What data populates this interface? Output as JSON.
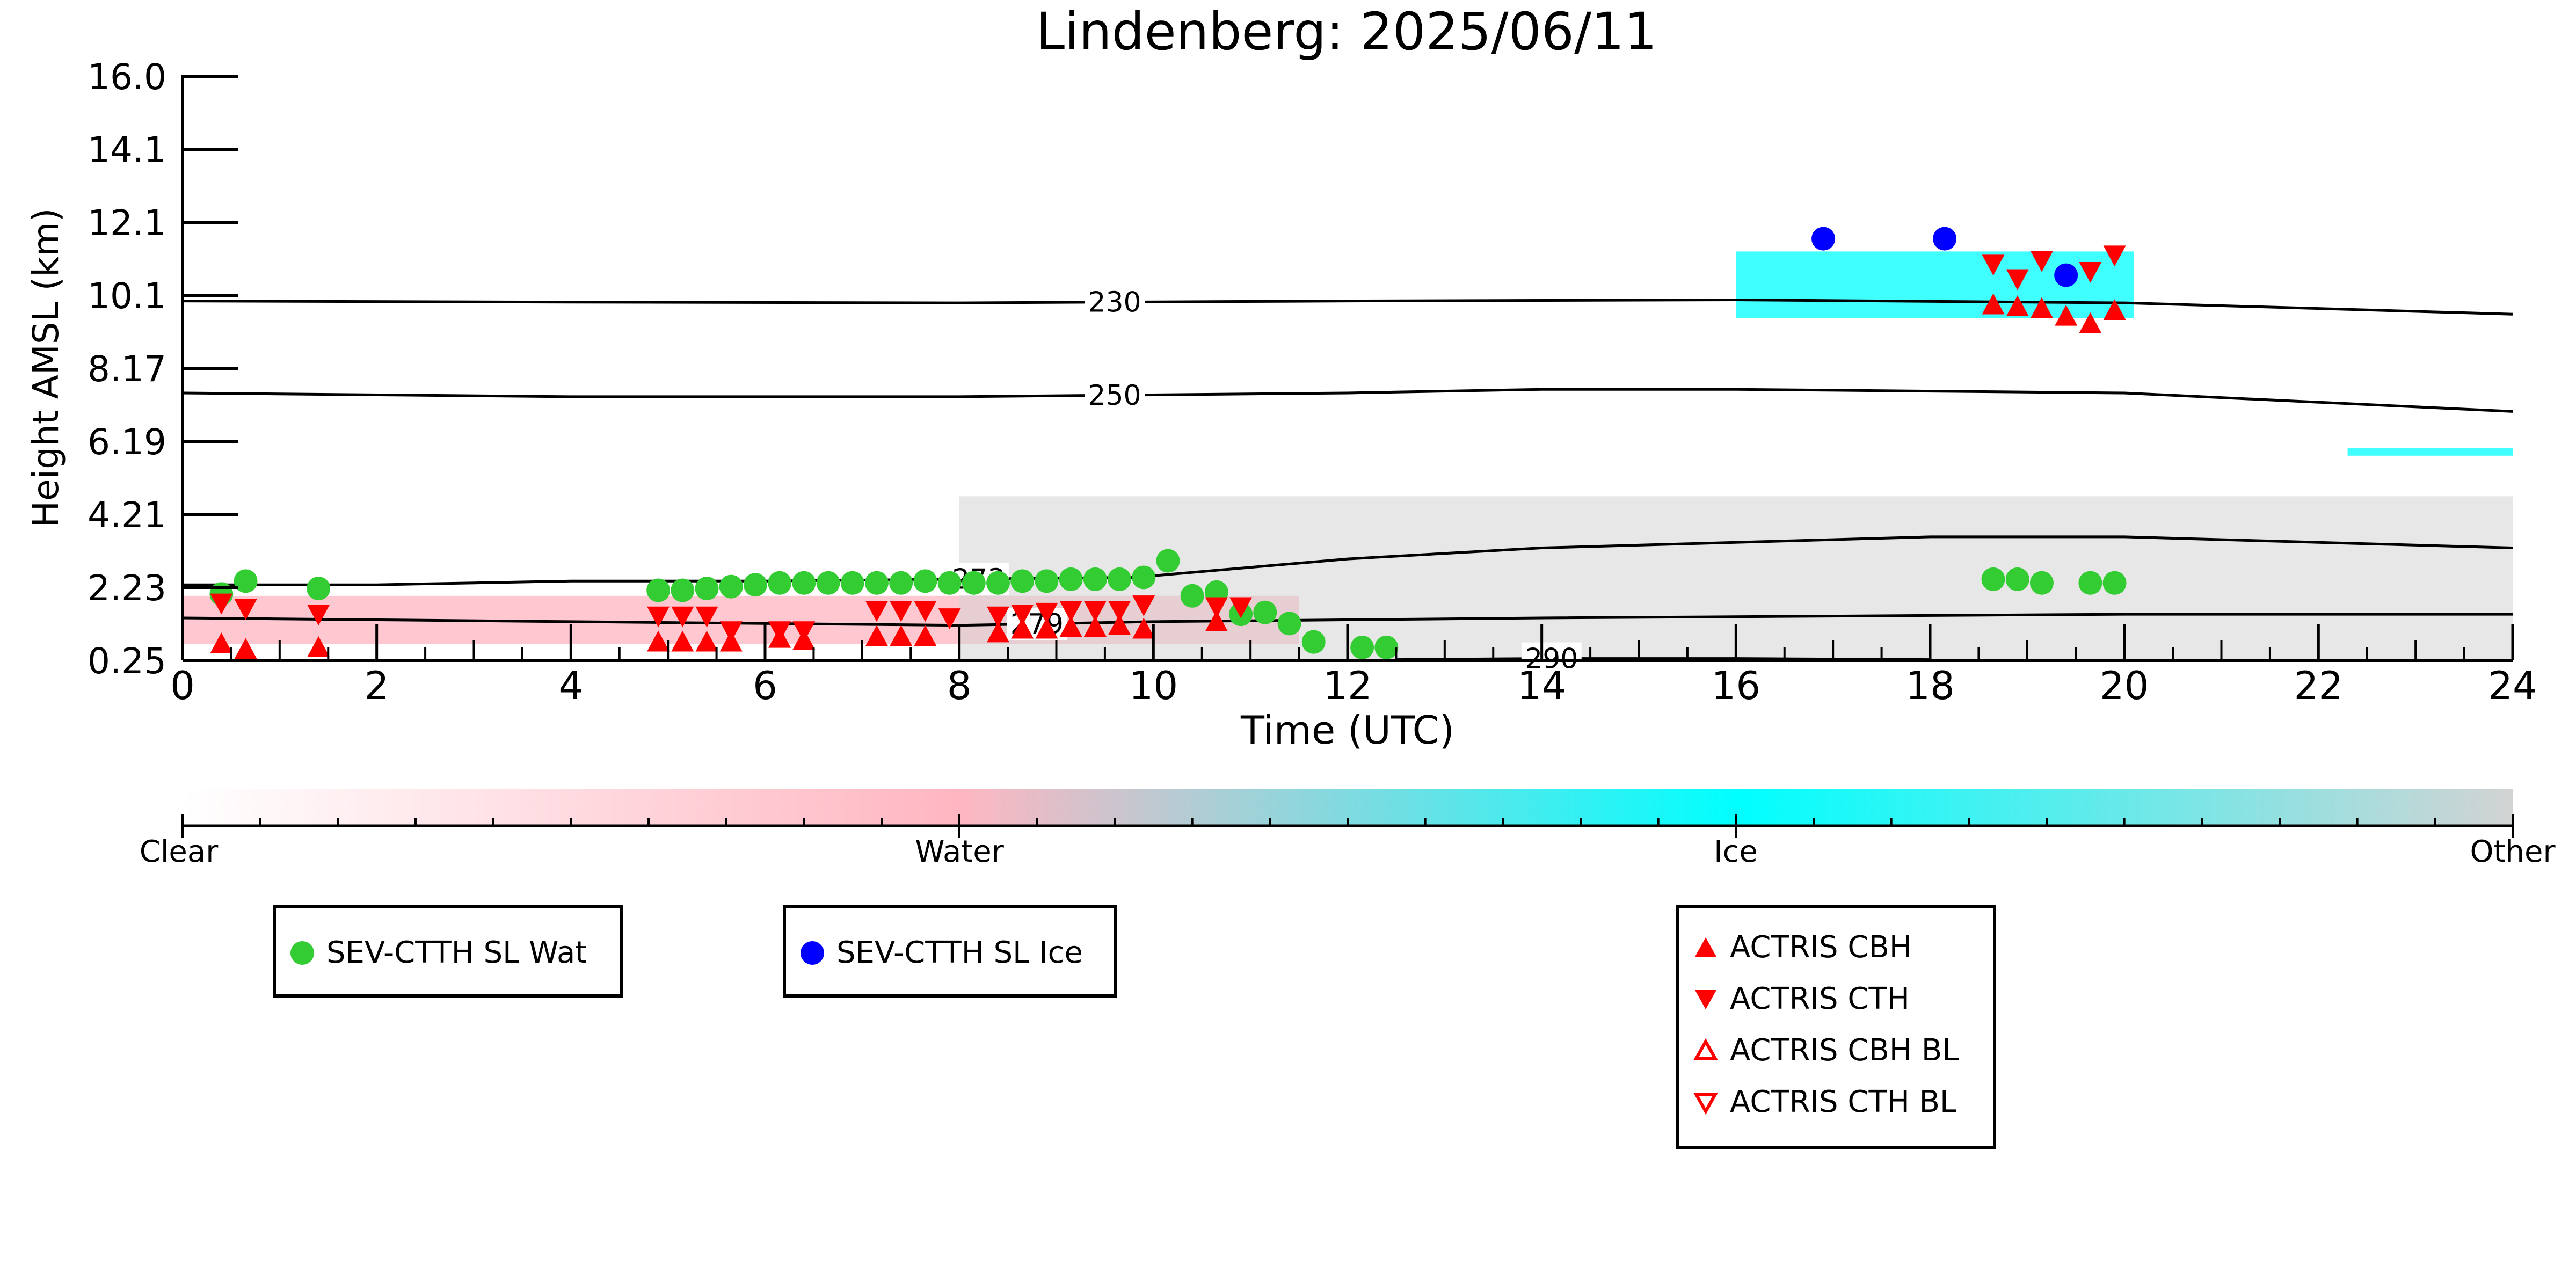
{
  "chart_data": {
    "type": "scatter",
    "title": "Lindenberg: 2025/06/11",
    "xlabel": "Time (UTC)",
    "ylabel": "Height AMSL (km)",
    "xlim": [
      0,
      24
    ],
    "ylim": [
      0.25,
      16.0
    ],
    "x_ticks": [
      "0",
      "2",
      "4",
      "6",
      "8",
      "10",
      "12",
      "14",
      "16",
      "18",
      "20",
      "22",
      "24"
    ],
    "y_ticks": [
      "0.25",
      "2.23",
      "4.21",
      "6.19",
      "8.17",
      "10.1",
      "12.1",
      "14.1",
      "16.0"
    ],
    "y_tick_values": [
      0.25,
      2.23,
      4.21,
      6.19,
      8.17,
      10.1,
      12.1,
      14.1,
      16.0
    ],
    "grid": false,
    "contours": [
      {
        "label": "230",
        "label_x": 9.6,
        "points": [
          [
            0,
            9.95
          ],
          [
            4,
            9.92
          ],
          [
            8,
            9.9
          ],
          [
            12,
            9.95
          ],
          [
            16,
            9.98
          ],
          [
            20,
            9.9
          ],
          [
            24,
            9.6
          ]
        ]
      },
      {
        "label": "250",
        "label_x": 9.6,
        "points": [
          [
            0,
            7.5
          ],
          [
            4,
            7.4
          ],
          [
            8,
            7.4
          ],
          [
            12,
            7.5
          ],
          [
            14,
            7.6
          ],
          [
            16,
            7.6
          ],
          [
            20,
            7.5
          ],
          [
            24,
            7.0
          ]
        ]
      },
      {
        "label": "273",
        "label_x": 8.2,
        "points": [
          [
            0,
            2.3
          ],
          [
            2,
            2.3
          ],
          [
            4,
            2.4
          ],
          [
            6,
            2.4
          ],
          [
            9.8,
            2.5
          ],
          [
            12,
            3.0
          ],
          [
            14,
            3.3
          ],
          [
            18,
            3.6
          ],
          [
            20,
            3.6
          ],
          [
            24,
            3.3
          ]
        ]
      },
      {
        "label": "279",
        "label_x": 8.8,
        "points": [
          [
            0,
            1.4
          ],
          [
            4,
            1.3
          ],
          [
            8,
            1.2
          ],
          [
            10,
            1.3
          ],
          [
            14,
            1.4
          ],
          [
            20,
            1.5
          ],
          [
            24,
            1.5
          ]
        ]
      },
      {
        "label": "290",
        "label_x": 14.1,
        "points": [
          [
            12.5,
            0.27
          ],
          [
            14,
            0.3
          ],
          [
            16,
            0.3
          ],
          [
            18,
            0.27
          ]
        ]
      }
    ],
    "colorbar": {
      "labels": [
        "Clear",
        "Water",
        "Ice",
        "Other"
      ],
      "colors": [
        "#ffffff",
        "#ffb6c1",
        "#00ffff",
        "#d3d3d3"
      ]
    },
    "series": [
      {
        "name": "SEV-CTTH SL Wat",
        "color": "#33cc33",
        "marker": "circle",
        "x": [
          0.4,
          0.65,
          1.4,
          4.9,
          5.15,
          5.4,
          5.65,
          5.9,
          6.15,
          6.4,
          6.65,
          6.9,
          7.15,
          7.4,
          7.65,
          7.9,
          8.15,
          8.4,
          8.65,
          8.9,
          9.15,
          9.4,
          9.65,
          9.9,
          10.15,
          10.4,
          10.65,
          10.9,
          11.15,
          11.4,
          11.65,
          12.15,
          12.4,
          18.65,
          18.9,
          19.15,
          19.65,
          19.9
        ],
        "y": [
          2.05,
          2.4,
          2.2,
          2.15,
          2.15,
          2.2,
          2.25,
          2.3,
          2.35,
          2.35,
          2.35,
          2.35,
          2.35,
          2.35,
          2.4,
          2.35,
          2.35,
          2.35,
          2.4,
          2.4,
          2.45,
          2.45,
          2.45,
          2.5,
          2.95,
          2.0,
          2.1,
          1.5,
          1.55,
          1.25,
          0.75,
          0.6,
          0.6,
          2.45,
          2.45,
          2.35,
          2.35,
          2.35
        ]
      },
      {
        "name": "SEV-CTTH SL Ice",
        "color": "#0000ff",
        "marker": "circle",
        "x": [
          16.9,
          18.15,
          19.4
        ],
        "y": [
          11.65,
          11.65,
          10.65
        ]
      },
      {
        "name": "ACTRIS CBH",
        "color": "#ff0000",
        "marker": "triangle-up",
        "x": [
          0.4,
          0.65,
          1.4,
          4.9,
          5.15,
          5.4,
          5.65,
          6.15,
          6.4,
          7.15,
          7.4,
          7.65,
          8.4,
          8.65,
          8.9,
          9.15,
          9.4,
          9.65,
          9.9,
          10.65,
          18.65,
          18.9,
          19.15,
          19.4,
          19.65,
          19.9
        ],
        "y": [
          0.7,
          0.55,
          0.6,
          0.75,
          0.75,
          0.75,
          0.75,
          0.85,
          0.8,
          0.9,
          0.9,
          0.9,
          1.0,
          1.1,
          1.1,
          1.15,
          1.15,
          1.2,
          1.1,
          1.3,
          9.85,
          9.8,
          9.75,
          9.55,
          9.35,
          9.7
        ]
      },
      {
        "name": "ACTRIS CTH",
        "color": "#ff0000",
        "marker": "triangle-down",
        "x": [
          0.4,
          0.65,
          1.4,
          4.9,
          5.15,
          5.4,
          5.65,
          6.15,
          6.4,
          7.15,
          7.4,
          7.65,
          7.9,
          8.4,
          8.65,
          8.9,
          9.15,
          9.4,
          9.65,
          9.9,
          10.65,
          10.9,
          18.65,
          18.9,
          19.15,
          19.65,
          19.9
        ],
        "y": [
          1.8,
          1.65,
          1.5,
          1.45,
          1.45,
          1.45,
          1.05,
          1.05,
          1.05,
          1.6,
          1.6,
          1.6,
          1.4,
          1.45,
          1.5,
          1.55,
          1.6,
          1.6,
          1.6,
          1.75,
          1.7,
          1.7,
          10.95,
          10.55,
          11.05,
          10.75,
          11.2
        ]
      },
      {
        "name": "ACTRIS CBH BL",
        "color": "#ff0000",
        "marker": "triangle-up-open",
        "x": [],
        "y": []
      },
      {
        "name": "ACTRIS CTH BL",
        "color": "#ff0000",
        "marker": "triangle-down-open",
        "x": [],
        "y": []
      }
    ],
    "cloud_mask_regions": [
      {
        "class": "Water",
        "x": [
          0,
          11.5
        ],
        "y": [
          0.7,
          2.0
        ]
      },
      {
        "class": "Other",
        "x": [
          8,
          24
        ],
        "y": [
          0.25,
          4.7
        ]
      },
      {
        "class": "Ice",
        "x": [
          16,
          20.1
        ],
        "y": [
          9.5,
          11.3
        ]
      },
      {
        "class": "Ice",
        "x": [
          22.3,
          24
        ],
        "y": [
          5.8,
          6.0
        ]
      }
    ]
  },
  "legends": {
    "sev_water": {
      "label": "SEV-CTTH SL Wat"
    },
    "sev_ice": {
      "label": "SEV-CTTH SL Ice"
    },
    "actris": {
      "cbh": "ACTRIS CBH",
      "cth": "ACTRIS CTH",
      "cbh_bl": "ACTRIS CBH BL",
      "cth_bl": "ACTRIS CTH BL"
    }
  }
}
